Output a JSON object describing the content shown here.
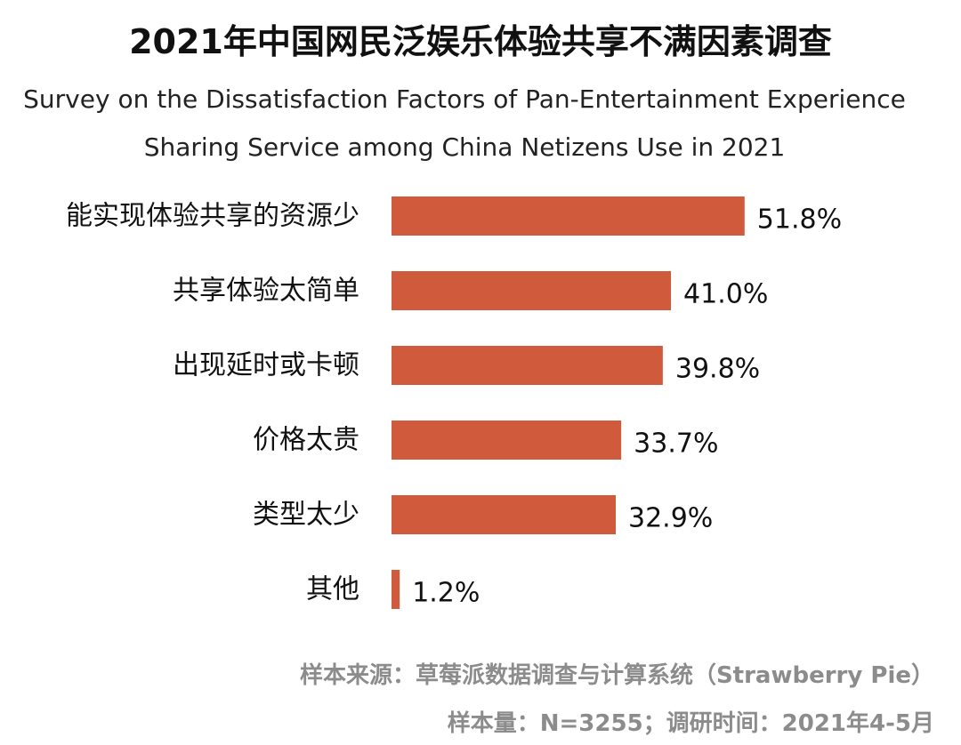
{
  "chart_data": {
    "type": "bar",
    "orientation": "horizontal",
    "title": "2021年中国网民泛娱乐体验共享不满因素调查",
    "subtitle": [
      "Survey on the Dissatisfaction Factors of Pan-Entertainment Experience",
      "Sharing Service among China Netizens Use in 2021"
    ],
    "categories": [
      "能实现体验共享的资源少",
      "共享体验太简单",
      "出现延时或卡顿",
      "价格太贵",
      "类型太少",
      "其他"
    ],
    "values": [
      51.8,
      41.0,
      39.8,
      33.7,
      32.9,
      1.2
    ],
    "value_labels": [
      "51.8%",
      "41.0%",
      "39.8%",
      "33.7%",
      "32.9%",
      "1.2%"
    ],
    "unit": "%",
    "xlim": [
      0,
      100
    ],
    "grid": false,
    "legend": "none",
    "bar_color": "#d05a3c"
  },
  "footer": {
    "source": "样本来源：草莓派数据调查与计算系统（Strawberry  Pie）",
    "sample": "样本量：N=3255；调研时间：2021年4-5月"
  }
}
